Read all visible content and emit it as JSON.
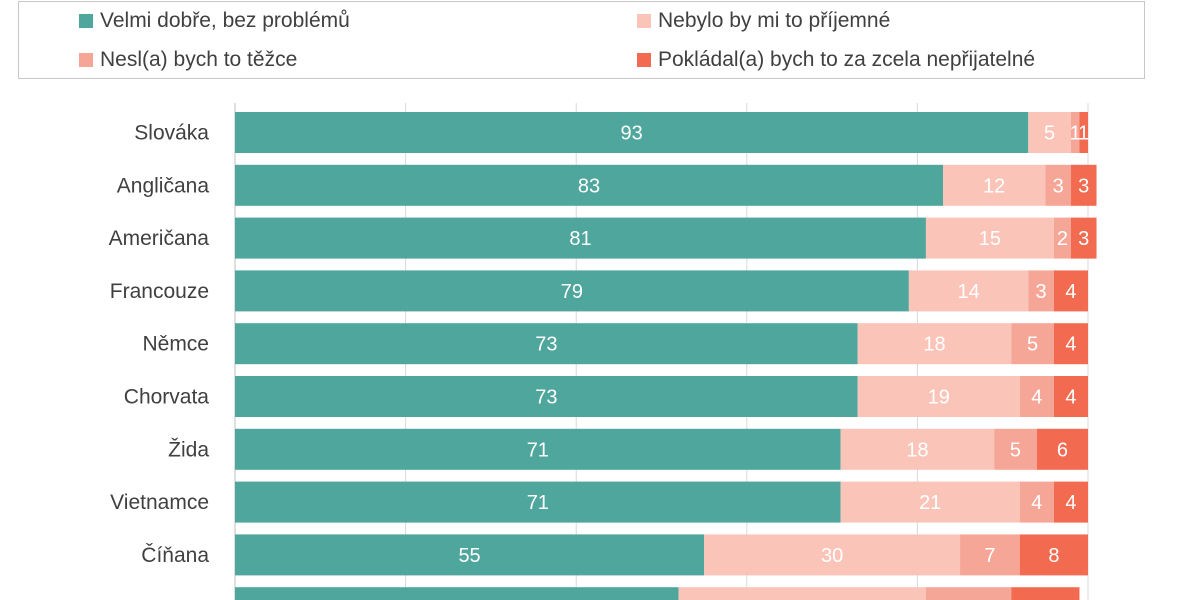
{
  "chart_data": {
    "type": "bar",
    "orientation": "horizontal",
    "stacked": true,
    "categories": [
      "Slováka",
      "Angličana",
      "Američana",
      "Francouze",
      "Němce",
      "Chorvata",
      "Žida",
      "Vietnamce",
      "Číňana"
    ],
    "series": [
      {
        "name": "Velmi dobře, bez problémů",
        "color": "#4ea69c",
        "values": [
          93,
          83,
          81,
          79,
          73,
          73,
          71,
          71,
          55
        ]
      },
      {
        "name": "Nebylo by mi to příjemné",
        "color": "#fbc4b8",
        "values": [
          5,
          12,
          15,
          14,
          18,
          19,
          18,
          21,
          30
        ]
      },
      {
        "name": "Nesl(a) bych to těžce",
        "color": "#f6a697",
        "values": [
          1,
          3,
          2,
          3,
          5,
          4,
          5,
          4,
          7
        ]
      },
      {
        "name": "Pokládal(a) bych to za zcela nepřijatelné",
        "color": "#f26b50",
        "values": [
          1,
          3,
          3,
          4,
          4,
          4,
          6,
          4,
          8
        ]
      }
    ],
    "partial_row": {
      "values": [
        52,
        29,
        10,
        8
      ]
    },
    "xlim": [
      0,
      100
    ],
    "grid": true,
    "legend_position": "top"
  }
}
